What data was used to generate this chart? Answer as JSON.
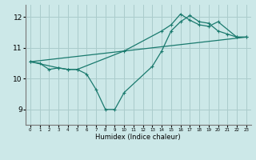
{
  "xlabel": "Humidex (Indice chaleur)",
  "xlim": [
    -0.5,
    23.5
  ],
  "ylim": [
    8.5,
    12.4
  ],
  "xticks": [
    0,
    1,
    2,
    3,
    4,
    5,
    6,
    7,
    8,
    9,
    10,
    11,
    12,
    13,
    14,
    15,
    16,
    17,
    18,
    19,
    20,
    21,
    22,
    23
  ],
  "yticks": [
    9,
    10,
    11,
    12
  ],
  "background_color": "#cce8e8",
  "grid_color": "#aacccc",
  "line_color": "#1a7a6e",
  "line1_x": [
    0,
    1,
    2,
    3,
    4,
    5,
    6,
    7,
    8,
    9,
    10,
    13,
    14,
    15,
    16,
    17,
    18,
    19,
    20,
    21,
    22,
    23
  ],
  "line1_y": [
    10.55,
    10.5,
    10.3,
    10.35,
    10.3,
    10.3,
    10.15,
    9.65,
    9.0,
    9.0,
    9.55,
    10.4,
    10.9,
    11.55,
    11.85,
    12.05,
    11.85,
    11.8,
    11.55,
    11.45,
    11.35,
    11.35
  ],
  "line2_x": [
    0,
    3,
    4,
    5,
    10,
    14,
    15,
    16,
    17,
    18,
    19,
    20,
    22,
    23
  ],
  "line2_y": [
    10.55,
    10.35,
    10.3,
    10.3,
    10.9,
    11.55,
    11.75,
    12.1,
    11.9,
    11.75,
    11.7,
    11.85,
    11.35,
    11.35
  ],
  "line3_x": [
    0,
    23
  ],
  "line3_y": [
    10.55,
    11.35
  ]
}
